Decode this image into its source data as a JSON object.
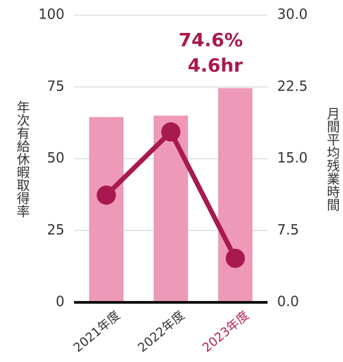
{
  "chart_data": {
    "type": "bar_line",
    "categories": [
      "2021年度",
      "2022年度",
      "2023年度"
    ],
    "category_colors": [
      "#333333",
      "#333333",
      "#b0245a"
    ],
    "ylabel": "年次有給休暇取得率",
    "y2label": "月間平均残業時間",
    "ylim": [
      0,
      100
    ],
    "yticks": [
      0,
      25,
      50,
      75,
      100
    ],
    "y2lim": [
      0,
      30
    ],
    "y2ticks": [
      {
        "value": 0,
        "label": "0.0"
      },
      7.5,
      {
        "value": 15,
        "label": "15.0"
      },
      22.5,
      {
        "value": 30,
        "label": "30.0"
      }
    ],
    "grid": true,
    "series": [
      {
        "type": "bar",
        "color": "#ee99b8",
        "values": [
          64.5,
          65,
          74.6
        ],
        "value_labels": [
          null,
          null,
          "74.6%"
        ]
      },
      {
        "type": "line",
        "axis": "y2",
        "color": "#a8194f",
        "values": [
          11.2,
          17.8,
          4.6
        ],
        "value_labels": [
          null,
          null,
          "4.6hr"
        ]
      }
    ]
  }
}
